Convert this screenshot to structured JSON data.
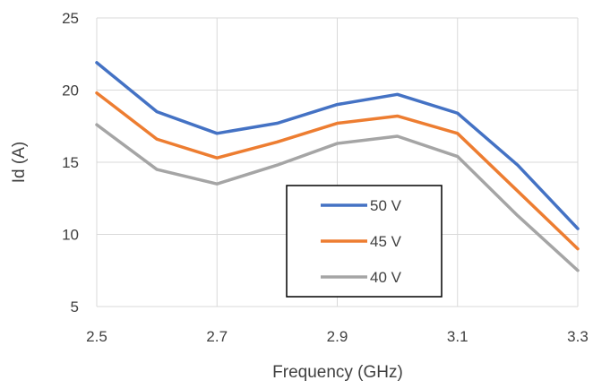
{
  "chart_data": {
    "type": "line",
    "title": "",
    "xlabel": "Frequency (GHz)",
    "ylabel": "Id (A)",
    "x": [
      2.5,
      2.6,
      2.7,
      2.8,
      2.9,
      3.0,
      3.1,
      3.2,
      3.3
    ],
    "xlim": [
      2.5,
      3.3
    ],
    "ylim": [
      5,
      25
    ],
    "xticks": [
      "2.5",
      "2.7",
      "2.9",
      "3.1",
      "3.3"
    ],
    "yticks": [
      "5",
      "10",
      "15",
      "20",
      "25"
    ],
    "grid": true,
    "legend_position": "inside-lower-center",
    "series": [
      {
        "name": "50 V",
        "color": "#4472C4",
        "values": [
          21.9,
          18.5,
          17.0,
          17.7,
          19.0,
          19.7,
          18.4,
          14.8,
          10.4
        ]
      },
      {
        "name": "45 V",
        "color": "#ED7D31",
        "values": [
          19.8,
          16.6,
          15.3,
          16.4,
          17.7,
          18.2,
          17.0,
          13.0,
          9.0
        ]
      },
      {
        "name": "40 V",
        "color": "#A5A5A5",
        "values": [
          17.6,
          14.5,
          13.5,
          14.8,
          16.3,
          16.8,
          15.4,
          11.3,
          7.5
        ]
      }
    ]
  }
}
